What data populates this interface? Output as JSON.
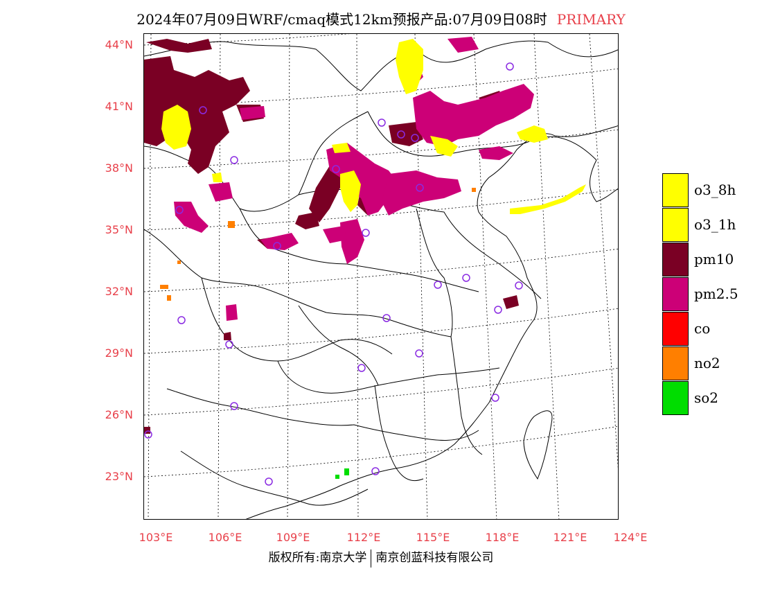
{
  "header": {
    "title": "2024年07月09日WRF/cmaq模式12km预报产品:07月09日08时",
    "tag": "PRIMARY"
  },
  "axes": {
    "lat_labels": [
      "44°N",
      "41°N",
      "38°N",
      "35°N",
      "32°N",
      "29°N",
      "26°N",
      "23°N"
    ],
    "lon_labels": [
      "103°E",
      "106°E",
      "109°E",
      "112°E",
      "115°E",
      "118°E",
      "121°E",
      "124°E"
    ]
  },
  "legend": {
    "items": [
      {
        "label": "o3_8h",
        "color": "#ffff00"
      },
      {
        "label": "o3_1h",
        "color": "#ffff00"
      },
      {
        "label": "pm10",
        "color": "#7a0024"
      },
      {
        "label": "pm2.5",
        "color": "#cc0077"
      },
      {
        "label": "co",
        "color": "#ff0000"
      },
      {
        "label": "no2",
        "color": "#ff7f00"
      },
      {
        "label": "so2",
        "color": "#00dd00"
      }
    ]
  },
  "footer": {
    "copyright": "版权所有:南京大学",
    "company": "南京创蓝科技有限公司"
  },
  "colors": {
    "accent": "#e8404a",
    "station_marker": "#8a2be2",
    "o3": "#ffff00",
    "pm10": "#7a0024",
    "pm25": "#cc0077",
    "no2": "#ff7f00",
    "so2": "#00dd00"
  }
}
